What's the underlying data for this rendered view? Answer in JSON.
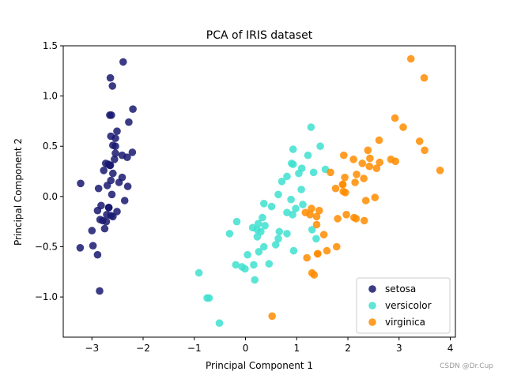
{
  "chart_data": {
    "type": "scatter",
    "title": "PCA of IRIS dataset",
    "xlabel": "Principal Component 1",
    "ylabel": "Principal Component 2",
    "xlim": [
      -3.56,
      4.1
    ],
    "ylim": [
      -1.4,
      1.5
    ],
    "xticks": [
      -3,
      -2,
      -1,
      0,
      1,
      2,
      3,
      4
    ],
    "xtick_labels": [
      "−3",
      "−2",
      "−1",
      "0",
      "1",
      "2",
      "3",
      "4"
    ],
    "yticks": [
      -1.0,
      -0.5,
      0.0,
      0.5,
      1.0,
      1.5
    ],
    "ytick_labels": [
      "−1.0",
      "−0.5",
      "0.0",
      "0.5",
      "1.0",
      "1.5"
    ],
    "grid": false,
    "legend_position": "lower-right",
    "series": [
      {
        "name": "setosa",
        "color": "#191970",
        "points": [
          [
            -2.68,
            0.32
          ],
          [
            -2.71,
            -0.18
          ],
          [
            -2.89,
            -0.14
          ],
          [
            -2.75,
            -0.32
          ],
          [
            -2.73,
            0.33
          ],
          [
            -2.28,
            0.74
          ],
          [
            -2.82,
            -0.09
          ],
          [
            -2.63,
            0.16
          ],
          [
            -2.89,
            -0.58
          ],
          [
            -2.67,
            -0.11
          ],
          [
            -2.51,
            0.65
          ],
          [
            -2.61,
            0.02
          ],
          [
            -2.79,
            -0.24
          ],
          [
            -3.23,
            -0.51
          ],
          [
            -2.64,
            1.18
          ],
          [
            -2.39,
            1.34
          ],
          [
            -2.62,
            0.81
          ],
          [
            -2.65,
            0.31
          ],
          [
            -2.2,
            0.87
          ],
          [
            -2.59,
            0.51
          ],
          [
            -2.31,
            0.39
          ],
          [
            -2.54,
            0.43
          ],
          [
            -3.22,
            0.13
          ],
          [
            -2.3,
            0.1
          ],
          [
            -2.36,
            -0.04
          ],
          [
            -2.51,
            -0.15
          ],
          [
            -2.47,
            0.14
          ],
          [
            -2.56,
            0.37
          ],
          [
            -2.64,
            0.31
          ],
          [
            -2.63,
            -0.19
          ],
          [
            -2.59,
            -0.2
          ],
          [
            -2.41,
            0.41
          ],
          [
            -2.65,
            0.81
          ],
          [
            -2.6,
            1.1
          ],
          [
            -2.67,
            -0.11
          ],
          [
            -2.87,
            0.08
          ],
          [
            -2.63,
            0.6
          ],
          [
            -2.67,
            -0.11
          ],
          [
            -2.98,
            -0.49
          ],
          [
            -2.59,
            0.23
          ],
          [
            -2.77,
            0.26
          ],
          [
            -2.85,
            -0.94
          ],
          [
            -3.0,
            -0.34
          ],
          [
            -2.41,
            0.19
          ],
          [
            -2.21,
            0.44
          ],
          [
            -2.72,
            -0.25
          ],
          [
            -2.54,
            0.5
          ],
          [
            -2.84,
            -0.23
          ],
          [
            -2.54,
            0.58
          ],
          [
            -2.7,
            0.11
          ]
        ]
      },
      {
        "name": "versicolor",
        "color": "#40e0d0",
        "points": [
          [
            1.28,
            0.69
          ],
          [
            0.93,
            0.32
          ],
          [
            1.46,
            0.5
          ],
          [
            0.18,
            -0.83
          ],
          [
            1.09,
            0.07
          ],
          [
            0.64,
            -0.42
          ],
          [
            1.1,
            0.28
          ],
          [
            -0.75,
            -1.01
          ],
          [
            1.04,
            0.23
          ],
          [
            -0.01,
            -0.72
          ],
          [
            -0.51,
            -1.26
          ],
          [
            0.51,
            -0.1
          ],
          [
            0.26,
            -0.55
          ],
          [
            0.98,
            -0.12
          ],
          [
            -0.17,
            -0.25
          ],
          [
            0.93,
            0.47
          ],
          [
            0.66,
            -0.35
          ],
          [
            0.23,
            -0.33
          ],
          [
            0.94,
            -0.54
          ],
          [
            0.04,
            -0.58
          ],
          [
            1.12,
            -0.08
          ],
          [
            0.36,
            -0.07
          ],
          [
            1.3,
            -0.33
          ],
          [
            0.92,
            -0.18
          ],
          [
            0.71,
            0.15
          ],
          [
            0.9,
            0.33
          ],
          [
            1.33,
            0.24
          ],
          [
            1.56,
            0.27
          ],
          [
            0.81,
            -0.16
          ],
          [
            -0.31,
            -0.37
          ],
          [
            -0.07,
            -0.7
          ],
          [
            -0.19,
            -0.68
          ],
          [
            0.14,
            -0.31
          ],
          [
            1.38,
            -0.42
          ],
          [
            0.59,
            -0.48
          ],
          [
            0.81,
            0.2
          ],
          [
            1.22,
            0.41
          ],
          [
            0.81,
            -0.37
          ],
          [
            0.25,
            -0.27
          ],
          [
            0.16,
            -0.68
          ],
          [
            0.46,
            -0.67
          ],
          [
            0.89,
            -0.03
          ],
          [
            0.23,
            -0.4
          ],
          [
            -0.71,
            -1.01
          ],
          [
            0.36,
            -0.5
          ],
          [
            0.33,
            -0.21
          ],
          [
            0.38,
            -0.29
          ],
          [
            0.64,
            0.02
          ],
          [
            -0.91,
            -0.76
          ],
          [
            0.3,
            -0.35
          ]
        ]
      },
      {
        "name": "virginica",
        "color": "#ff8c00",
        "points": [
          [
            2.53,
            -0.01
          ],
          [
            1.41,
            -0.57
          ],
          [
            2.62,
            0.34
          ],
          [
            1.97,
            -0.18
          ],
          [
            2.35,
            -0.04
          ],
          [
            3.4,
            0.55
          ],
          [
            0.52,
            -1.19
          ],
          [
            2.93,
            0.35
          ],
          [
            2.32,
            -0.24
          ],
          [
            2.92,
            0.78
          ],
          [
            1.66,
            0.24
          ],
          [
            1.8,
            -0.22
          ],
          [
            2.17,
            0.22
          ],
          [
            1.34,
            -0.78
          ],
          [
            1.59,
            -0.54
          ],
          [
            1.9,
            0.12
          ],
          [
            1.95,
            0.04
          ],
          [
            3.49,
            1.18
          ],
          [
            3.8,
            0.26
          ],
          [
            1.3,
            -0.76
          ],
          [
            2.43,
            0.38
          ],
          [
            1.2,
            -0.61
          ],
          [
            3.5,
            0.46
          ],
          [
            1.39,
            -0.2
          ],
          [
            2.28,
            0.33
          ],
          [
            2.61,
            0.56
          ],
          [
            1.26,
            -0.18
          ],
          [
            1.29,
            -0.12
          ],
          [
            2.12,
            -0.21
          ],
          [
            2.39,
            0.46
          ],
          [
            2.84,
            0.37
          ],
          [
            3.23,
            1.37
          ],
          [
            2.16,
            -0.22
          ],
          [
            1.44,
            -0.14
          ],
          [
            1.78,
            -0.5
          ],
          [
            3.08,
            0.69
          ],
          [
            2.14,
            0.14
          ],
          [
            1.91,
            0.05
          ],
          [
            1.17,
            -0.16
          ],
          [
            2.11,
            0.37
          ],
          [
            2.31,
            0.18
          ],
          [
            1.92,
            0.41
          ],
          [
            1.41,
            -0.57
          ],
          [
            2.56,
            0.28
          ],
          [
            2.42,
            0.3
          ],
          [
            1.94,
            0.19
          ],
          [
            1.53,
            -0.38
          ],
          [
            1.76,
            0.08
          ],
          [
            1.9,
            0.12
          ],
          [
            1.39,
            -0.28
          ]
        ]
      }
    ]
  },
  "watermark": "CSDN @Dr.Cup"
}
